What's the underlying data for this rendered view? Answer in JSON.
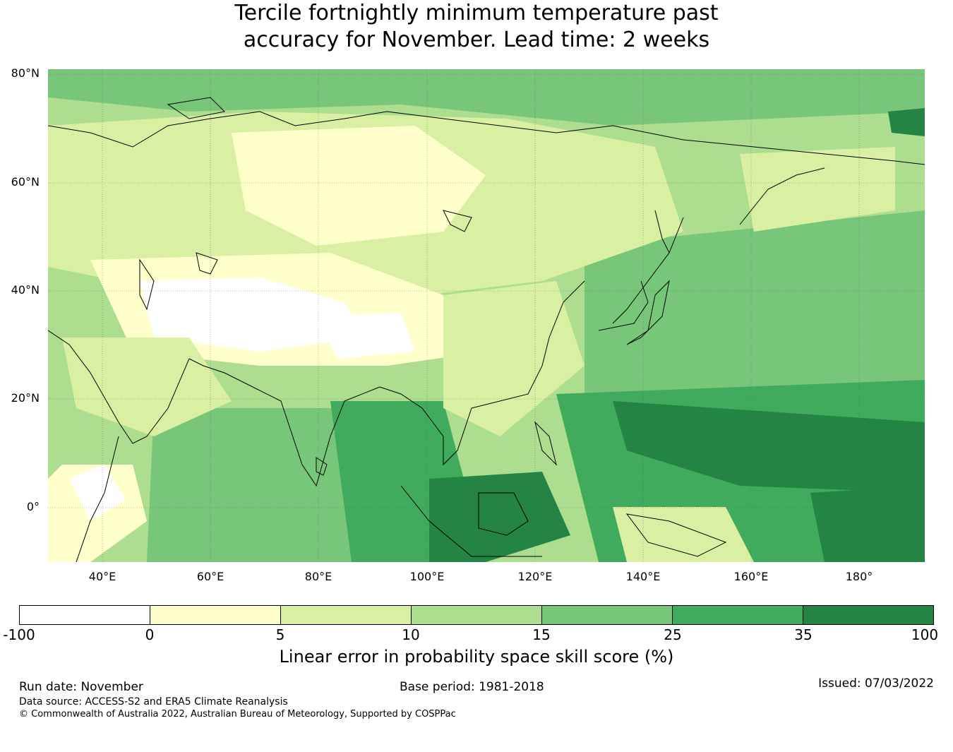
{
  "title": {
    "line1": "Tercile fortnightly minimum temperature past",
    "line2": "accuracy for November. Lead time: 2 weeks"
  },
  "map": {
    "lat_labels": [
      "80°N",
      "60°N",
      "40°N",
      "20°N",
      "0°"
    ],
    "lon_labels": [
      "40°E",
      "60°E",
      "80°E",
      "100°E",
      "120°E",
      "140°E",
      "160°E",
      "180°"
    ]
  },
  "colorbar": {
    "title": "Linear error in probability space skill score (%)",
    "ticks": [
      "-100",
      "0",
      "5",
      "10",
      "15",
      "25",
      "35",
      "100"
    ],
    "colors": [
      "#ffffff",
      "#ffffcc",
      "#d9f0a3",
      "#addd8e",
      "#78c679",
      "#41ab5d",
      "#238443"
    ]
  },
  "footer": {
    "run_date": "Run date: November",
    "base_period": "Base period: 1981-2018",
    "issued": "Issued: 07/03/2022",
    "data_source": "Data source: ACCESS-S2 and ERA5 Climate Reanalysis",
    "copyright": "© Commonwealth of Australia 2022, Australian Bureau of Meteorology, Supported by COSPPac"
  }
}
